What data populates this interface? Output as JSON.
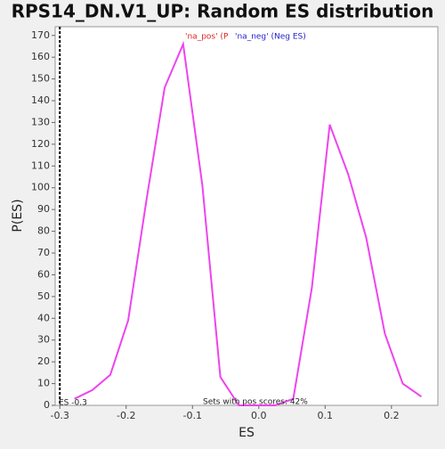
{
  "chart_data": {
    "type": "line",
    "title": "RPS14_DN.V1_UP: Random ES distribution",
    "xlabel": "ES",
    "ylabel": "P(ES)",
    "x": [
      -0.278,
      -0.251,
      -0.224,
      -0.197,
      -0.169,
      -0.142,
      -0.114,
      -0.085,
      -0.058,
      -0.03,
      -0.003,
      0.025,
      0.052,
      0.08,
      0.107,
      0.135,
      0.162,
      0.19,
      0.217,
      0.245
    ],
    "series": [
      {
        "name": "Random ES",
        "color": "#ee44ee",
        "values": [
          3,
          7,
          14,
          39,
          95,
          146,
          166,
          101,
          13,
          0,
          0,
          0,
          3,
          54,
          129,
          106,
          77,
          33,
          10,
          4
        ]
      }
    ],
    "legend": [
      {
        "text": "'na_pos' (P",
        "color": "#dd2222"
      },
      {
        "text": "'na_neg' (Neg ES)",
        "color": "#2222cc"
      }
    ],
    "annotations": [
      "Sets with pos scores: 42%",
      "ES -0.3"
    ],
    "es_marker": -0.3,
    "xlim": [
      -0.307,
      0.27
    ],
    "ylim": [
      0,
      174
    ],
    "xticks": [
      -0.3,
      -0.2,
      -0.1,
      {
        "value": 0,
        "label": "0.0"
      },
      0.1,
      0.2
    ],
    "yticks": [
      0,
      10,
      20,
      30,
      40,
      50,
      60,
      70,
      80,
      90,
      100,
      110,
      120,
      130,
      140,
      150,
      160,
      170
    ]
  }
}
